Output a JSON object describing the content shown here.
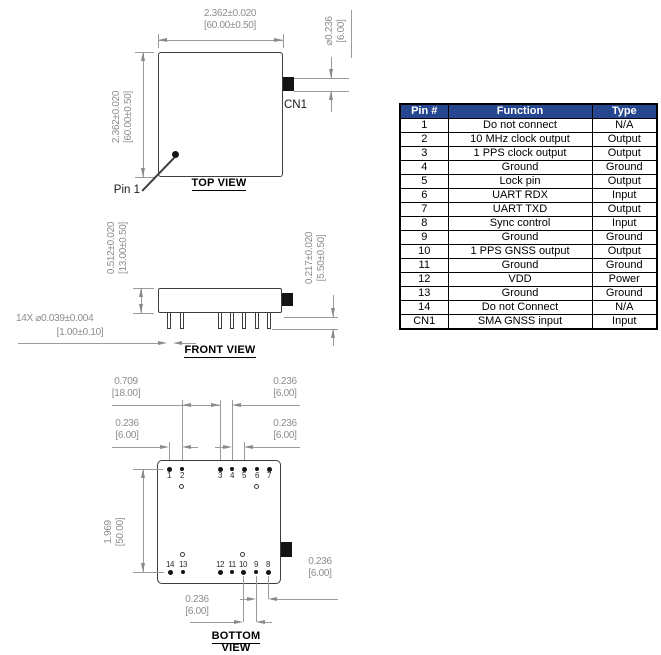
{
  "views": {
    "top": {
      "label": "TOP VIEW",
      "pin1_label": "Pin 1",
      "connector_label": "CN1"
    },
    "front": {
      "label": "FRONT VIEW"
    },
    "bottom": {
      "label": "BOTTOM VIEW"
    }
  },
  "dims": {
    "top_width": {
      "in": "2.362±0.020",
      "mm": "[60.00±0.50]"
    },
    "top_height": {
      "in": "2.362±0.020",
      "mm": "[60.00±0.50]"
    },
    "cn1_dia": {
      "in": "⌀0.236",
      "mm": "[6.00]"
    },
    "front_height": {
      "in": "0.512±0.020",
      "mm": "[13.00±0.50]"
    },
    "front_pin_len": {
      "in": "0.217±0.020",
      "mm": "[5.50±0.50]"
    },
    "pin_dia": {
      "in": "14X ⌀0.039±0.004",
      "mm": "[1.00±0.10]"
    },
    "bottom_gap_center": {
      "in": "0.709",
      "mm": "[18.00]"
    },
    "bottom_pitch_tr": {
      "in": "0.236",
      "mm": "[6.00]"
    },
    "bottom_pitch_l": {
      "in": "0.236",
      "mm": "[6.00]"
    },
    "bottom_pitch_r": {
      "in": "0.236",
      "mm": "[6.00]"
    },
    "bottom_height": {
      "in": "1.969",
      "mm": "[50.00]"
    },
    "bottom_pitch_br": {
      "in": "0.236",
      "mm": "[6.00]"
    },
    "bottom_pitch_bc": {
      "in": "0.236",
      "mm": "[6.00]"
    }
  },
  "bottom_pins": {
    "top_row": [
      "1",
      "2",
      "3",
      "4",
      "5",
      "6",
      "7"
    ],
    "bottom_row": [
      "14",
      "13",
      "12",
      "11",
      "10",
      "9",
      "8"
    ]
  },
  "pin_table": {
    "headers": [
      "Pin #",
      "Function",
      "Type"
    ],
    "header_bg": "#26478F",
    "header_fg": "#FFFFFF",
    "rows": [
      [
        "1",
        "Do not connect",
        "N/A"
      ],
      [
        "2",
        "10 MHz clock output",
        "Output"
      ],
      [
        "3",
        "1 PPS clock output",
        "Output"
      ],
      [
        "4",
        "Ground",
        "Ground"
      ],
      [
        "5",
        "Lock pin",
        "Output"
      ],
      [
        "6",
        "UART RDX",
        "Input"
      ],
      [
        "7",
        "UART TXD",
        "Output"
      ],
      [
        "8",
        "Sync control",
        "Input"
      ],
      [
        "9",
        "Ground",
        "Ground"
      ],
      [
        "10",
        "1 PPS GNSS output",
        "Output"
      ],
      [
        "11",
        "Ground",
        "Ground"
      ],
      [
        "12",
        "VDD",
        "Power"
      ],
      [
        "13",
        "Ground",
        "Ground"
      ],
      [
        "14",
        "Do not Connect",
        "N/A"
      ],
      [
        "CN1",
        "SMA GNSS input",
        "Input"
      ]
    ]
  },
  "colors": {
    "line_dark": "#3d3d3d",
    "line_dim": "#9b9b9b",
    "text_dim": "#8d8d8d"
  }
}
